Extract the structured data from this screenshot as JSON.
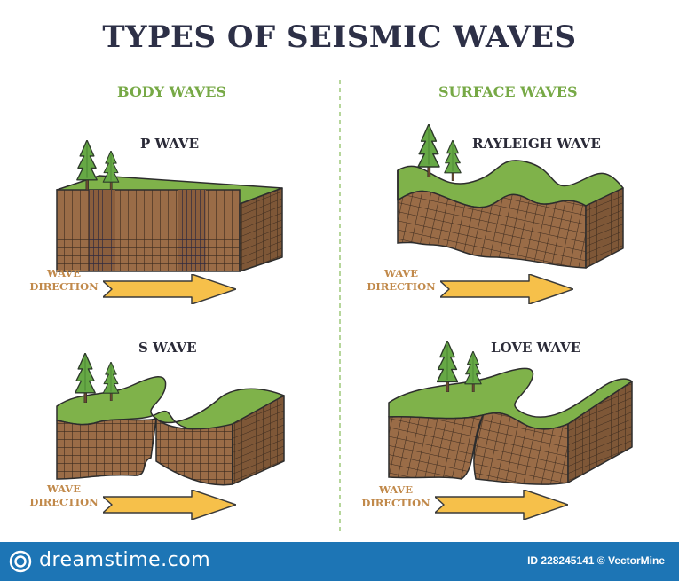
{
  "title": "TYPES OF SEISMIC WAVES",
  "sections": {
    "body": "BODY WAVES",
    "surface": "SURFACE WAVES"
  },
  "panels": {
    "p_wave": "P WAVE",
    "s_wave": "S WAVE",
    "rayleigh": "RAYLEIGH WAVE",
    "love": "LOVE WAVE"
  },
  "wave_direction": {
    "line1": "WAVE",
    "line2": "DIRECTION"
  },
  "footer": {
    "brand": "dreamstime.com",
    "id_label": "ID 228245141",
    "credit": "VectorMine",
    "credit_line": "ID 228245141 © VectorMine"
  },
  "colors": {
    "title": "#2d3047",
    "section": "#77a946",
    "grass": "#7fb24a",
    "soil": "#9a6c47",
    "arrow": "#f6c04a",
    "footer": "#1d75b5"
  }
}
